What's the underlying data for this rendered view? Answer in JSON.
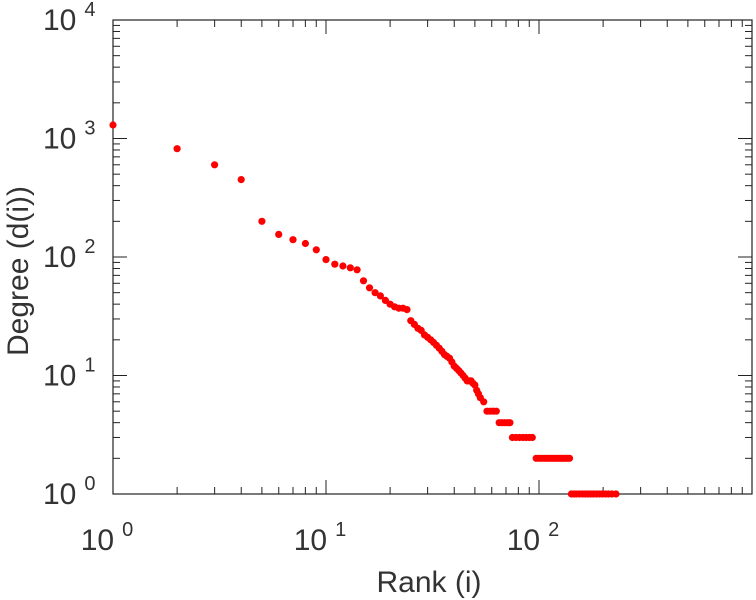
{
  "chart_data": {
    "type": "scatter",
    "title": "",
    "xlabel": "Rank (i)",
    "ylabel": "Degree (d(i))",
    "x_scale": "log",
    "y_scale": "log",
    "xlim": [
      1,
      1000
    ],
    "ylim": [
      1,
      10000
    ],
    "grid": false,
    "marker_color": "#ff0000",
    "x_ticks": [
      {
        "value": 1,
        "base": "10",
        "exp": "0"
      },
      {
        "value": 10,
        "base": "10",
        "exp": "1"
      },
      {
        "value": 100,
        "base": "10",
        "exp": "2"
      }
    ],
    "y_ticks": [
      {
        "value": 1,
        "base": "10",
        "exp": "0"
      },
      {
        "value": 10,
        "base": "10",
        "exp": "1"
      },
      {
        "value": 100,
        "base": "10",
        "exp": "2"
      },
      {
        "value": 1000,
        "base": "10",
        "exp": "3"
      },
      {
        "value": 10000,
        "base": "10",
        "exp": "4"
      }
    ],
    "series": [
      {
        "points": [
          [
            1,
            1300
          ],
          [
            2,
            820
          ],
          [
            3,
            600
          ],
          [
            4,
            450
          ],
          [
            5,
            200
          ],
          [
            6,
            155
          ],
          [
            7,
            140
          ],
          [
            8,
            130
          ],
          [
            9,
            115
          ],
          [
            10,
            95
          ],
          [
            11,
            87
          ],
          [
            12,
            84
          ],
          [
            13,
            81
          ],
          [
            14,
            78
          ],
          [
            15,
            63
          ],
          [
            16,
            55
          ],
          [
            17,
            50
          ],
          [
            18,
            47
          ],
          [
            19,
            43
          ],
          [
            20,
            40
          ],
          [
            21,
            38
          ],
          [
            22,
            37
          ],
          [
            23,
            37
          ],
          [
            24,
            36
          ],
          [
            25,
            29
          ],
          [
            26,
            27
          ],
          [
            27,
            25
          ],
          [
            28,
            24
          ],
          [
            29,
            22
          ],
          [
            30,
            21
          ],
          [
            31,
            20
          ],
          [
            32,
            19
          ],
          [
            33,
            18
          ],
          [
            34,
            17
          ],
          [
            35,
            16
          ],
          [
            36,
            15
          ],
          [
            37,
            14.5
          ],
          [
            38,
            14
          ],
          [
            39,
            13
          ],
          [
            40,
            12
          ],
          [
            41,
            11.5
          ],
          [
            42,
            11
          ],
          [
            43,
            10.5
          ],
          [
            44,
            10
          ],
          [
            45,
            9.5
          ],
          [
            46,
            9
          ],
          [
            47,
            9
          ],
          [
            48,
            9
          ],
          [
            49,
            8.6
          ],
          [
            50,
            8.3
          ],
          [
            51,
            7.5
          ],
          [
            52,
            7
          ],
          [
            53,
            6.5
          ],
          [
            55,
            6
          ],
          [
            57,
            5
          ],
          [
            59,
            5
          ],
          [
            61,
            5
          ],
          [
            63,
            5
          ],
          [
            65,
            4
          ],
          [
            67,
            4
          ],
          [
            69,
            4
          ],
          [
            71,
            4
          ],
          [
            73,
            4
          ],
          [
            75,
            3
          ],
          [
            78,
            3
          ],
          [
            81,
            3
          ],
          [
            84,
            3
          ],
          [
            87,
            3
          ],
          [
            90,
            3
          ],
          [
            93,
            3
          ],
          [
            97,
            2
          ],
          [
            100,
            2
          ],
          [
            103,
            2
          ],
          [
            106,
            2
          ],
          [
            109,
            2
          ],
          [
            112,
            2
          ],
          [
            115,
            2
          ],
          [
            118,
            2
          ],
          [
            121,
            2
          ],
          [
            124,
            2
          ],
          [
            127,
            2
          ],
          [
            130,
            2
          ],
          [
            133,
            2
          ],
          [
            136,
            2
          ],
          [
            139,
            2
          ],
          [
            142,
            1
          ],
          [
            146,
            1
          ],
          [
            150,
            1
          ],
          [
            155,
            1
          ],
          [
            160,
            1
          ],
          [
            165,
            1
          ],
          [
            170,
            1
          ],
          [
            175,
            1
          ],
          [
            180,
            1
          ],
          [
            186,
            1
          ],
          [
            192,
            1
          ],
          [
            198,
            1
          ],
          [
            205,
            1
          ],
          [
            212,
            1
          ],
          [
            220,
            1
          ],
          [
            230,
            1
          ]
        ]
      }
    ]
  }
}
